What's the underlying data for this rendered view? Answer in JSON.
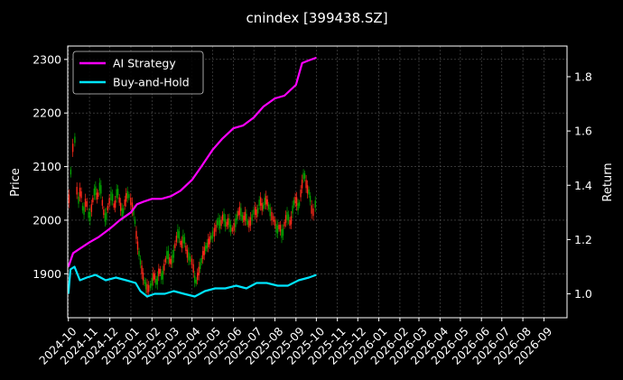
{
  "chart_data": {
    "type": "line",
    "title": "cnindex [399438.SZ]",
    "ylabel_left": "Price",
    "ylabel_right": "Return",
    "grid": true,
    "legend": "top-left",
    "colors": {
      "background": "#000000",
      "ai_strategy": "#ff00ff",
      "buy_and_hold": "#00e5ff",
      "candle_up": "#ff2a1a",
      "candle_down": "#00a000",
      "grid": "#555555"
    },
    "x_ticks": [
      "2024-10",
      "2024-11",
      "2024-12",
      "2025-01",
      "2025-02",
      "2025-03",
      "2025-04",
      "2025-05",
      "2025-06",
      "2025-07",
      "2025-08",
      "2025-09",
      "2025-10",
      "2025-11",
      "2025-12",
      "2026-01",
      "2026-02",
      "2026-03",
      "2026-04",
      "2026-05",
      "2026-06",
      "2026-07",
      "2026-08",
      "2026-09"
    ],
    "x_range": [
      "2024-09-30",
      "2026-10-05"
    ],
    "y_left": {
      "ticks": [
        1900,
        2000,
        2100,
        2200,
        2300
      ],
      "range": [
        1818,
        2325
      ]
    },
    "y_right": {
      "ticks": [
        1.0,
        1.2,
        1.4,
        1.6,
        1.8
      ],
      "range": [
        0.912,
        1.913
      ]
    },
    "price_series": [
      [
        "2024-10-01",
        1950
      ],
      [
        "2024-10-03",
        2130
      ],
      [
        "2024-10-06",
        2050
      ],
      [
        "2024-10-09",
        2220
      ],
      [
        "2024-10-12",
        2080
      ],
      [
        "2024-10-15",
        2030
      ],
      [
        "2024-10-19",
        2060
      ],
      [
        "2024-10-23",
        2010
      ],
      [
        "2024-10-27",
        2040
      ],
      [
        "2024-11-01",
        2000
      ],
      [
        "2024-11-05",
        2030
      ],
      [
        "2024-11-09",
        2060
      ],
      [
        "2024-11-13",
        2040
      ],
      [
        "2024-11-17",
        2070
      ],
      [
        "2024-11-21",
        2020
      ],
      [
        "2024-11-25",
        2000
      ],
      [
        "2024-11-29",
        2030
      ],
      [
        "2024-12-04",
        2050
      ],
      [
        "2024-12-08",
        2020
      ],
      [
        "2024-12-12",
        2060
      ],
      [
        "2024-12-16",
        2030
      ],
      [
        "2024-12-20",
        2010
      ],
      [
        "2024-12-24",
        2040
      ],
      [
        "2024-12-28",
        2050
      ],
      [
        "2025-01-02",
        2030
      ],
      [
        "2025-01-06",
        2010
      ],
      [
        "2025-01-10",
        1960
      ],
      [
        "2025-01-14",
        1930
      ],
      [
        "2025-01-18",
        1900
      ],
      [
        "2025-01-22",
        1880
      ],
      [
        "2025-01-26",
        1870
      ],
      [
        "2025-01-31",
        1880
      ],
      [
        "2025-02-04",
        1900
      ],
      [
        "2025-02-08",
        1880
      ],
      [
        "2025-02-12",
        1910
      ],
      [
        "2025-02-16",
        1890
      ],
      [
        "2025-02-20",
        1920
      ],
      [
        "2025-02-24",
        1940
      ],
      [
        "2025-02-28",
        1920
      ],
      [
        "2025-03-04",
        1930
      ],
      [
        "2025-03-08",
        1960
      ],
      [
        "2025-03-12",
        1980
      ],
      [
        "2025-03-16",
        1950
      ],
      [
        "2025-03-20",
        1970
      ],
      [
        "2025-03-24",
        1940
      ],
      [
        "2025-03-28",
        1930
      ],
      [
        "2025-04-02",
        1920
      ],
      [
        "2025-04-06",
        1880
      ],
      [
        "2025-04-10",
        1900
      ],
      [
        "2025-04-14",
        1920
      ],
      [
        "2025-04-18",
        1940
      ],
      [
        "2025-04-22",
        1950
      ],
      [
        "2025-04-26",
        1960
      ],
      [
        "2025-04-30",
        1970
      ],
      [
        "2025-05-05",
        1980
      ],
      [
        "2025-05-09",
        2000
      ],
      [
        "2025-05-13",
        1990
      ],
      [
        "2025-05-17",
        2010
      ],
      [
        "2025-05-21",
        1990
      ],
      [
        "2025-05-25",
        2000
      ],
      [
        "2025-05-29",
        1980
      ],
      [
        "2025-06-03",
        1990
      ],
      [
        "2025-06-07",
        2010
      ],
      [
        "2025-06-11",
        2020
      ],
      [
        "2025-06-15",
        2000
      ],
      [
        "2025-06-19",
        2010
      ],
      [
        "2025-06-23",
        1990
      ],
      [
        "2025-06-27",
        2000
      ],
      [
        "2025-07-02",
        2020
      ],
      [
        "2025-07-06",
        2010
      ],
      [
        "2025-07-10",
        2040
      ],
      [
        "2025-07-14",
        2020
      ],
      [
        "2025-07-18",
        2040
      ],
      [
        "2025-07-22",
        2030
      ],
      [
        "2025-07-26",
        2010
      ],
      [
        "2025-07-31",
        2000
      ],
      [
        "2025-08-04",
        1980
      ],
      [
        "2025-08-08",
        1990
      ],
      [
        "2025-08-12",
        1970
      ],
      [
        "2025-08-16",
        2000
      ],
      [
        "2025-08-20",
        2010
      ],
      [
        "2025-08-24",
        1990
      ],
      [
        "2025-08-28",
        2030
      ],
      [
        "2025-09-01",
        2040
      ],
      [
        "2025-09-05",
        2020
      ],
      [
        "2025-09-09",
        2060
      ],
      [
        "2025-09-13",
        2090
      ],
      [
        "2025-09-17",
        2060
      ],
      [
        "2025-09-21",
        2050
      ],
      [
        "2025-09-25",
        2010
      ],
      [
        "2025-09-28",
        2020
      ],
      [
        "2025-10-01",
        2040
      ]
    ],
    "series": [
      {
        "name": "AI Strategy",
        "axis": "right",
        "color": "#ff00ff",
        "points": [
          [
            "2024-10-01",
            1.1
          ],
          [
            "2024-10-08",
            1.15
          ],
          [
            "2024-10-20",
            1.17
          ],
          [
            "2024-11-01",
            1.19
          ],
          [
            "2024-11-15",
            1.21
          ],
          [
            "2024-12-01",
            1.24
          ],
          [
            "2024-12-15",
            1.27
          ],
          [
            "2025-01-01",
            1.3
          ],
          [
            "2025-01-10",
            1.33
          ],
          [
            "2025-01-20",
            1.34
          ],
          [
            "2025-02-01",
            1.35
          ],
          [
            "2025-02-15",
            1.35
          ],
          [
            "2025-03-01",
            1.36
          ],
          [
            "2025-03-15",
            1.38
          ],
          [
            "2025-04-01",
            1.42
          ],
          [
            "2025-04-15",
            1.47
          ],
          [
            "2025-05-01",
            1.53
          ],
          [
            "2025-05-15",
            1.57
          ],
          [
            "2025-06-01",
            1.61
          ],
          [
            "2025-06-15",
            1.62
          ],
          [
            "2025-07-01",
            1.65
          ],
          [
            "2025-07-15",
            1.69
          ],
          [
            "2025-08-01",
            1.72
          ],
          [
            "2025-08-15",
            1.73
          ],
          [
            "2025-09-01",
            1.77
          ],
          [
            "2025-09-10",
            1.85
          ],
          [
            "2025-09-20",
            1.86
          ],
          [
            "2025-10-01",
            1.87
          ]
        ]
      },
      {
        "name": "Buy-and-Hold",
        "axis": "right",
        "color": "#00e5ff",
        "points": [
          [
            "2024-10-01",
            1.0
          ],
          [
            "2024-10-04",
            1.09
          ],
          [
            "2024-10-10",
            1.1
          ],
          [
            "2024-10-18",
            1.05
          ],
          [
            "2024-10-28",
            1.06
          ],
          [
            "2024-11-10",
            1.07
          ],
          [
            "2024-11-25",
            1.05
          ],
          [
            "2024-12-10",
            1.06
          ],
          [
            "2024-12-25",
            1.05
          ],
          [
            "2025-01-08",
            1.04
          ],
          [
            "2025-01-15",
            1.01
          ],
          [
            "2025-01-25",
            0.99
          ],
          [
            "2025-02-05",
            1.0
          ],
          [
            "2025-02-20",
            1.0
          ],
          [
            "2025-03-05",
            1.01
          ],
          [
            "2025-03-20",
            1.0
          ],
          [
            "2025-04-05",
            0.99
          ],
          [
            "2025-04-20",
            1.01
          ],
          [
            "2025-05-05",
            1.02
          ],
          [
            "2025-05-20",
            1.02
          ],
          [
            "2025-06-05",
            1.03
          ],
          [
            "2025-06-20",
            1.02
          ],
          [
            "2025-07-05",
            1.04
          ],
          [
            "2025-07-20",
            1.04
          ],
          [
            "2025-08-05",
            1.03
          ],
          [
            "2025-08-20",
            1.03
          ],
          [
            "2025-09-05",
            1.05
          ],
          [
            "2025-09-20",
            1.06
          ],
          [
            "2025-10-01",
            1.07
          ]
        ]
      }
    ]
  }
}
